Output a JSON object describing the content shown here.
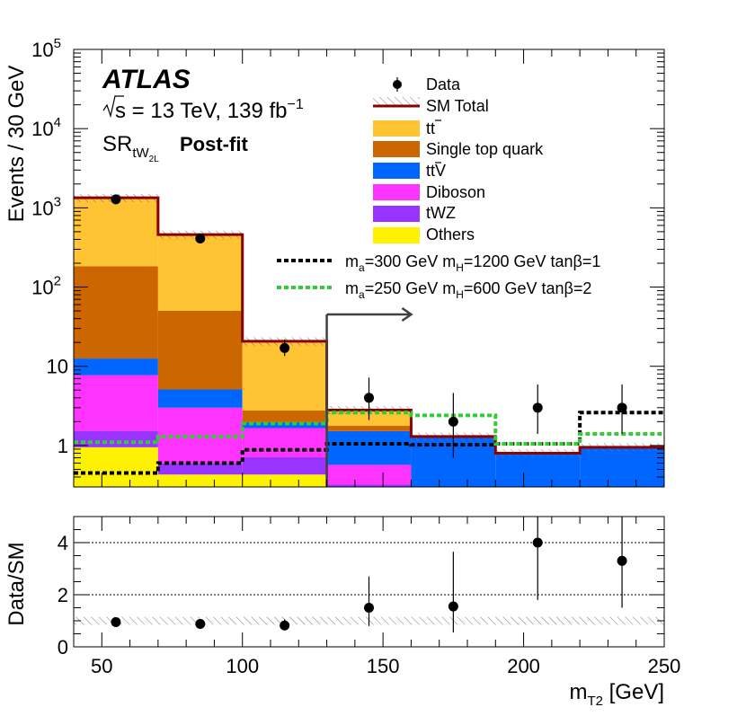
{
  "chart_data": [
    {
      "panel": "main",
      "type": "stacked-histogram",
      "yscale": "log",
      "ylim": [
        0.3,
        100000
      ],
      "xlim": [
        40,
        250
      ],
      "ylabel": "Events / 30 GeV",
      "bins": [
        [
          40,
          70
        ],
        [
          70,
          100
        ],
        [
          100,
          130
        ],
        [
          130,
          160
        ],
        [
          160,
          190
        ],
        [
          190,
          220
        ],
        [
          220,
          250
        ]
      ],
      "stack": [
        {
          "name": "Others",
          "color": "#fff200",
          "values": [
            0.95,
            0.43,
            0.43,
            0.25,
            0.06,
            0.05,
            0.05
          ]
        },
        {
          "name": "tWZ",
          "color": "#9933ff",
          "values": [
            0.58,
            0.17,
            0.28,
            0.07,
            0.03,
            0.03,
            0.03
          ]
        },
        {
          "name": "Diboson",
          "color": "#ff33ff",
          "values": [
            6.2,
            2.4,
            0.95,
            0.25,
            0.01,
            0.01,
            0.01
          ]
        },
        {
          "name": "ttV",
          "color": "#0066ff",
          "values": [
            4.8,
            2.1,
            0.3,
            0.95,
            1.2,
            0.7,
            0.85
          ]
        },
        {
          "name": "Single top quark",
          "color": "#cc6600",
          "values": [
            170,
            45,
            0.8,
            0.25,
            0.0,
            0.0,
            0.0
          ]
        },
        {
          "name": "tt",
          "color": "#ffc433",
          "values": [
            1150,
            410,
            17.9,
            1.05,
            0.01,
            0.01,
            0.0
          ]
        }
      ],
      "sm_total": [
        1340,
        460,
        20.7,
        2.8,
        1.3,
        0.8,
        0.95
      ],
      "data": {
        "x": [
          55,
          85,
          115,
          145,
          175,
          205,
          235
        ],
        "y": [
          1280,
          410,
          17,
          4,
          2,
          3,
          3
        ],
        "err_low": [
          36,
          20,
          3.5,
          1.9,
          1.3,
          1.6,
          1.6
        ],
        "err_high": [
          36,
          20,
          4.8,
          3.2,
          2.6,
          2.9,
          2.9
        ]
      },
      "signals": [
        {
          "label_key": "sig1",
          "color": "#000000",
          "values": [
            0.45,
            0.6,
            0.88,
            1.05,
            1.02,
            1.05,
            2.6
          ]
        },
        {
          "label_key": "sig2",
          "color": "#33cc33",
          "values": [
            1.1,
            1.3,
            1.9,
            2.6,
            2.4,
            1.05,
            1.4
          ]
        }
      ],
      "sr_arrow": {
        "x_start": 130,
        "x_end": 160
      }
    },
    {
      "panel": "ratio",
      "type": "scatter",
      "ylabel": "Data/SM",
      "xlabel": "m_T2 [GeV]",
      "ylim": [
        0,
        5
      ],
      "xlim": [
        40,
        250
      ],
      "x": [
        55,
        85,
        115,
        145,
        175,
        205,
        235
      ],
      "y": [
        0.95,
        0.88,
        0.82,
        1.5,
        1.55,
        4.0,
        3.3
      ],
      "err_low": [
        0.03,
        0.05,
        0.17,
        0.7,
        1.0,
        2.2,
        1.8
      ],
      "err_high": [
        0.03,
        0.05,
        0.24,
        1.2,
        2.1,
        3.6,
        3.0
      ],
      "uncertainty_band": [
        0.85,
        1.15
      ],
      "gridlines_y": [
        2,
        4
      ]
    }
  ],
  "atlas_label": "ATLAS",
  "energy_label": "s = 13 TeV, 139 fb",
  "energy_exp": "−1",
  "region": {
    "prefix": "SR",
    "sub": "tW",
    "subsub": "2L",
    "fit": "Post-fit"
  },
  "legend": {
    "data": "Data",
    "sm_total": "SM Total",
    "ttbar": "tt",
    "single_top": "Single top quark",
    "ttv": "ttV",
    "diboson": "Diboson",
    "twz": "tWZ",
    "others": "Others",
    "sig1_a": "m",
    "sig1_asub": "a",
    "sig1_b": "=300 GeV m",
    "sig1_bsub": "H",
    "sig1_c": "=1200 GeV tanβ=1",
    "sig2_a": "m",
    "sig2_asub": "a",
    "sig2_b": "=250 GeV m",
    "sig2_bsub": "H",
    "sig2_c": "=600 GeV tanβ=2"
  },
  "main_y_ticks": [
    {
      "v": 1,
      "base": "1",
      "exp": ""
    },
    {
      "v": 10,
      "base": "10",
      "exp": ""
    },
    {
      "v": 100,
      "base": "10",
      "exp": "2"
    },
    {
      "v": 1000,
      "base": "10",
      "exp": "3"
    },
    {
      "v": 10000,
      "base": "10",
      "exp": "4"
    },
    {
      "v": 100000,
      "base": "10",
      "exp": "5"
    }
  ],
  "ratio_y_ticks": [
    "0",
    "2",
    "4"
  ],
  "x_ticks": [
    "50",
    "100",
    "150",
    "200",
    "250"
  ],
  "colors": {
    "sm_line": "#8b0000",
    "arrow": "#404040",
    "hatch": "#888888"
  }
}
